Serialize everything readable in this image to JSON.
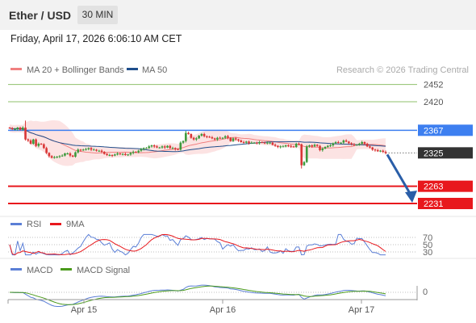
{
  "header": {
    "title": "Ether / USD",
    "timeframe": "30 MIN"
  },
  "date_text": "Friday, April 17, 2026 6:06:10 AM CET",
  "legend": {
    "bands": "MA 20 + Bollinger Bands",
    "ma50": "MA 50"
  },
  "copyright": "Research © 2026 Trading Central",
  "colors": {
    "bands": "#f08080",
    "ma50": "#1f4e8c",
    "up": "#3c9a3c",
    "down": "#d93636",
    "resistance_green": "#8fc16b",
    "pivot_blue": "#3d7ff0",
    "support_red": "#e8181d",
    "last_price": "#333333",
    "arrow": "#2a5ea8"
  },
  "chart_data": [
    {
      "type": "candlestick",
      "title": "Ether / USD",
      "x_ticks": [
        "Apr 15",
        "Apr 16",
        "Apr 17"
      ],
      "ylim": [
        2222,
        2462
      ],
      "levels": [
        {
          "value": 2452,
          "label": "2452",
          "kind": "resistance"
        },
        {
          "value": 2420,
          "label": "2420",
          "kind": "resistance"
        },
        {
          "value": 2367,
          "label": "2367",
          "kind": "pivot"
        },
        {
          "value": 2325,
          "label": "2325",
          "kind": "last"
        },
        {
          "value": 2263,
          "label": "2263",
          "kind": "support"
        },
        {
          "value": 2231,
          "label": "2231",
          "kind": "support"
        }
      ],
      "close": [
        2371,
        2369,
        2369,
        2372,
        2368,
        2372,
        2350,
        2348,
        2342,
        2350,
        2338,
        2342,
        2341,
        2334,
        2325,
        2319,
        2316,
        2317,
        2318,
        2319,
        2320,
        2324,
        2324,
        2320,
        2318,
        2326,
        2331,
        2330,
        2331,
        2332,
        2334,
        2331,
        2331,
        2329,
        2329,
        2327,
        2323,
        2321,
        2321,
        2320,
        2322,
        2324,
        2323,
        2323,
        2321,
        2322,
        2325,
        2327,
        2326,
        2329,
        2332,
        2334,
        2334,
        2337,
        2339,
        2337,
        2335,
        2335,
        2337,
        2335,
        2338,
        2334,
        2334,
        2332,
        2331,
        2344,
        2347,
        2362,
        2360,
        2353,
        2350,
        2352,
        2357,
        2360,
        2356,
        2355,
        2354,
        2352,
        2350,
        2353,
        2352,
        2353,
        2356,
        2353,
        2347,
        2352,
        2350,
        2348,
        2345,
        2344,
        2346,
        2343,
        2344,
        2344,
        2343,
        2345,
        2344,
        2343,
        2344,
        2344,
        2340,
        2338,
        2336,
        2337,
        2337,
        2339,
        2338,
        2337,
        2336,
        2342,
        2341,
        2302,
        2308,
        2337,
        2339,
        2337,
        2340,
        2338,
        2330,
        2333,
        2336,
        2338,
        2339,
        2343,
        2345,
        2344,
        2344,
        2348,
        2346,
        2343,
        2341,
        2340,
        2340,
        2342,
        2345,
        2342,
        2337,
        2335,
        2331,
        2330,
        2328,
        2329,
        2327,
        2325
      ],
      "rsi": {
        "levels": [
          70,
          50,
          30
        ],
        "ma_label": "9MA",
        "label": "RSI"
      },
      "macd": {
        "label": "MACD",
        "signal_label": "MACD Signal",
        "zero_label": "0"
      }
    }
  ],
  "panels": {
    "rsi_legend": "RSI",
    "rsi_ma_legend": "9MA",
    "rsi_70": "70",
    "rsi_50": "50",
    "rsi_30": "30",
    "macd_legend": "MACD",
    "macd_signal_legend": "MACD Signal",
    "macd_zero": "0"
  }
}
